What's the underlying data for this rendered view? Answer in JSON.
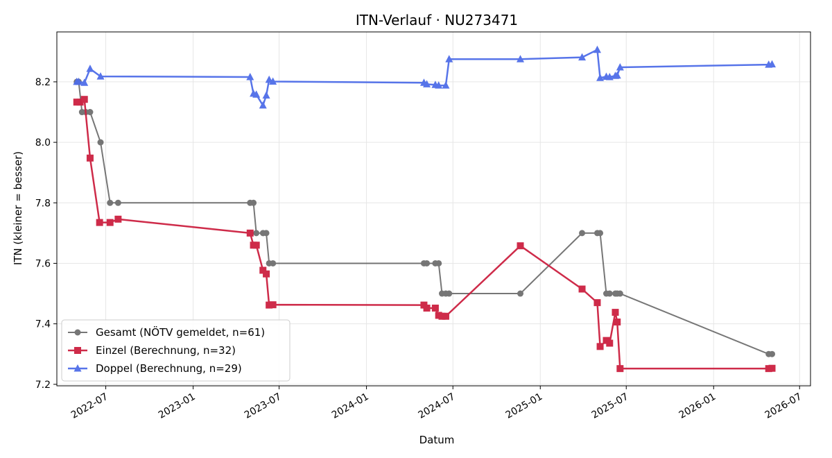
{
  "chart_data": {
    "type": "line",
    "title": "ITN-Verlauf · NU273471",
    "xlabel": "Datum",
    "ylabel": "ITN  (kleiner = besser)",
    "xlim": [
      "2022-03-20",
      "2026-07-24"
    ],
    "ylim": [
      7.195,
      8.365
    ],
    "grid": true,
    "legend_position": "lower-left",
    "x_ticks": [
      "2022-07",
      "2023-01",
      "2023-07",
      "2024-01",
      "2024-07",
      "2025-01",
      "2025-07",
      "2026-01",
      "2026-07"
    ],
    "y_ticks": [
      "7.2",
      "7.4",
      "7.6",
      "7.8",
      "8.0",
      "8.2"
    ],
    "series": [
      {
        "name": "Gesamt (NÖTV gemeldet, n=61)",
        "color": "#555555",
        "marker": "circle",
        "points": [
          [
            "2022-05-01",
            8.2
          ],
          [
            "2022-05-05",
            8.2
          ],
          [
            "2022-05-12",
            8.1
          ],
          [
            "2022-05-20",
            8.1
          ],
          [
            "2022-05-29",
            8.1
          ],
          [
            "2022-06-20",
            8.0
          ],
          [
            "2022-07-10",
            7.8
          ],
          [
            "2022-07-27",
            7.8
          ],
          [
            "2023-05-01",
            7.8
          ],
          [
            "2023-05-08",
            7.8
          ],
          [
            "2023-05-14",
            7.7
          ],
          [
            "2023-05-28",
            7.7
          ],
          [
            "2023-06-04",
            7.7
          ],
          [
            "2023-06-10",
            7.6
          ],
          [
            "2023-06-18",
            7.6
          ],
          [
            "2024-05-01",
            7.6
          ],
          [
            "2024-05-07",
            7.6
          ],
          [
            "2024-05-25",
            7.6
          ],
          [
            "2024-06-01",
            7.6
          ],
          [
            "2024-06-08",
            7.5
          ],
          [
            "2024-06-16",
            7.5
          ],
          [
            "2024-06-23",
            7.5
          ],
          [
            "2024-11-20",
            7.5
          ],
          [
            "2025-03-30",
            7.7
          ],
          [
            "2025-05-01",
            7.7
          ],
          [
            "2025-05-07",
            7.7
          ],
          [
            "2025-05-20",
            7.5
          ],
          [
            "2025-05-27",
            7.5
          ],
          [
            "2025-06-08",
            7.5
          ],
          [
            "2025-06-12",
            7.5
          ],
          [
            "2025-06-18",
            7.5
          ],
          [
            "2026-04-27",
            7.3
          ],
          [
            "2026-05-04",
            7.3
          ]
        ]
      },
      {
        "name": "Einzel (Berechnung, n=32)",
        "color": "#cc2040",
        "marker": "square",
        "points": [
          [
            "2022-05-01",
            8.133
          ],
          [
            "2022-05-08",
            8.133
          ],
          [
            "2022-05-17",
            8.142
          ],
          [
            "2022-05-29",
            7.948
          ],
          [
            "2022-06-18",
            7.735
          ],
          [
            "2022-07-10",
            7.735
          ],
          [
            "2022-07-27",
            7.746
          ],
          [
            "2023-05-01",
            7.7
          ],
          [
            "2023-05-08",
            7.66
          ],
          [
            "2023-05-14",
            7.66
          ],
          [
            "2023-05-28",
            7.577
          ],
          [
            "2023-06-04",
            7.565
          ],
          [
            "2023-06-10",
            7.462
          ],
          [
            "2023-06-18",
            7.463
          ],
          [
            "2024-05-01",
            7.462
          ],
          [
            "2024-05-07",
            7.452
          ],
          [
            "2024-05-25",
            7.452
          ],
          [
            "2024-06-01",
            7.428
          ],
          [
            "2024-06-08",
            7.425
          ],
          [
            "2024-06-16",
            7.425
          ],
          [
            "2024-11-20",
            7.658
          ],
          [
            "2025-03-30",
            7.515
          ],
          [
            "2025-05-01",
            7.47
          ],
          [
            "2025-05-07",
            7.325
          ],
          [
            "2025-05-20",
            7.345
          ],
          [
            "2025-05-27",
            7.336
          ],
          [
            "2025-06-08",
            7.438
          ],
          [
            "2025-06-12",
            7.406
          ],
          [
            "2025-06-18",
            7.252
          ],
          [
            "2026-04-27",
            7.252
          ],
          [
            "2026-05-04",
            7.253
          ]
        ]
      },
      {
        "name": "Doppel (Berechnung, n=29)",
        "color": "#4f6de8",
        "marker": "triangle",
        "points": [
          [
            "2022-05-01",
            8.2
          ],
          [
            "2022-05-05",
            8.2
          ],
          [
            "2022-05-17",
            8.197
          ],
          [
            "2022-05-29",
            8.243
          ],
          [
            "2022-06-20",
            8.218
          ],
          [
            "2023-05-01",
            8.216
          ],
          [
            "2023-05-08",
            8.161
          ],
          [
            "2023-05-14",
            8.158
          ],
          [
            "2023-05-28",
            8.122
          ],
          [
            "2023-06-04",
            8.155
          ],
          [
            "2023-06-10",
            8.207
          ],
          [
            "2023-06-18",
            8.201
          ],
          [
            "2024-05-01",
            8.197
          ],
          [
            "2024-05-07",
            8.192
          ],
          [
            "2024-05-25",
            8.19
          ],
          [
            "2024-06-01",
            8.188
          ],
          [
            "2024-06-16",
            8.188
          ],
          [
            "2024-06-23",
            8.275
          ],
          [
            "2024-11-20",
            8.275
          ],
          [
            "2025-03-30",
            8.281
          ],
          [
            "2025-05-01",
            8.306
          ],
          [
            "2025-05-07",
            8.213
          ],
          [
            "2025-05-20",
            8.217
          ],
          [
            "2025-05-27",
            8.216
          ],
          [
            "2025-06-08",
            8.22
          ],
          [
            "2025-06-12",
            8.221
          ],
          [
            "2025-06-18",
            8.248
          ],
          [
            "2026-04-27",
            8.257
          ],
          [
            "2026-05-04",
            8.258
          ]
        ]
      }
    ]
  }
}
